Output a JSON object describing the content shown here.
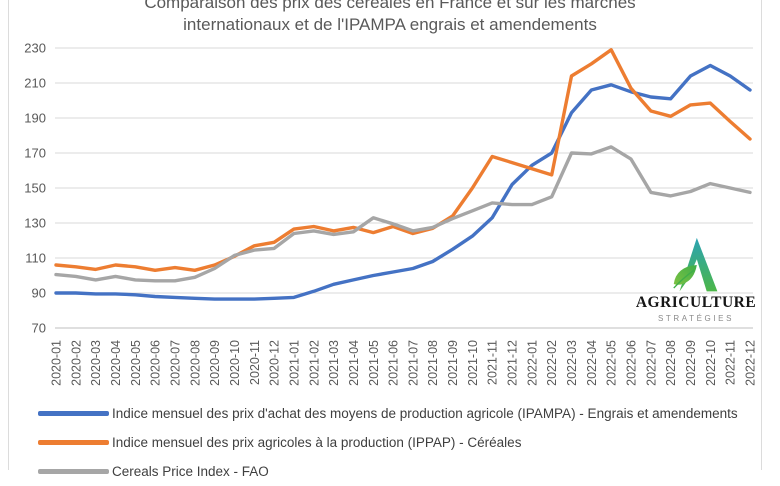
{
  "title": {
    "line1": "Comparaison des prix des céréales en France et sur les marchés",
    "line2": "internationaux et de l'IPAMPA engrais et amendements"
  },
  "logo": {
    "brand": "AGRICULTURE",
    "sub": "STRATÉGIES"
  },
  "colors": {
    "ipampa_blue": "#4472C4",
    "ippap_orange": "#ED7D31",
    "fao_gray": "#A6A6A6",
    "grid": "#D9D9D9",
    "axis_line": "#BFBFBF",
    "tick_text": "#595959",
    "title_text": "#595959",
    "legend_text": "#3F3F3F"
  },
  "chart_data": {
    "type": "line",
    "title": "Comparaison des prix des céréales en France et sur les marchés internationaux et de l'IPAMPA engrais et amendements",
    "xlabel": "",
    "ylabel": "",
    "ylim": [
      70,
      230
    ],
    "yticks": [
      70,
      90,
      110,
      130,
      150,
      170,
      190,
      210,
      230
    ],
    "grid": true,
    "legend_position": "bottom-left",
    "x": [
      "2020-01",
      "2020-02",
      "2020-03",
      "2020-04",
      "2020-05",
      "2020-06",
      "2020-07",
      "2020-08",
      "2020-09",
      "2020-10",
      "2020-11",
      "2020-12",
      "2021-01",
      "2021-02",
      "2021-03",
      "2021-04",
      "2021-05",
      "2021-06",
      "2021-07",
      "2021-08",
      "2021-09",
      "2021-10",
      "2021-11",
      "2021-12",
      "2022-01",
      "2022-02",
      "2022-03",
      "2022-04",
      "2022-05",
      "2022-06",
      "2022-07",
      "2022-08",
      "2022-09",
      "2022-10",
      "2022-11",
      "2022-12"
    ],
    "series": [
      {
        "name": "Indice mensuel des prix d'achat des moyens de production agricole (IPAMPA) - Engrais et amendements",
        "color": "#4472C4",
        "values": [
          90,
          90,
          89.5,
          89.5,
          89,
          88,
          87.5,
          87,
          86.5,
          86.5,
          86.5,
          87,
          87.5,
          91,
          95,
          97.5,
          100,
          102,
          104,
          108,
          115,
          122.5,
          133,
          152,
          163,
          170,
          193,
          206,
          209,
          205,
          202,
          201,
          214,
          220,
          214,
          206
        ]
      },
      {
        "name": "Indice mensuel des prix agricoles à la production (IPPAP) - Céréales",
        "color": "#ED7D31",
        "values": [
          106,
          105,
          103.5,
          106,
          105,
          103,
          104.5,
          103,
          106,
          111,
          117,
          119,
          126.5,
          128,
          125.5,
          127.5,
          124.5,
          128,
          124,
          127,
          134,
          150,
          168,
          164.5,
          161,
          157.5,
          214,
          221,
          229,
          207,
          194,
          191,
          197.5,
          198.5,
          188,
          178
        ]
      },
      {
        "name": "Cereals Price Index - FAO",
        "color": "#A6A6A6",
        "values": [
          100.5,
          99.5,
          97.5,
          99.5,
          97.5,
          97,
          97,
          99,
          104,
          111.5,
          114.5,
          115.5,
          124,
          125.5,
          123.5,
          125,
          133,
          129.5,
          125.5,
          127.5,
          132.5,
          137,
          141.5,
          140.5,
          140.5,
          145,
          170,
          169.5,
          173.5,
          166.5,
          147.5,
          145.5,
          148,
          152.5,
          150,
          147.5
        ]
      }
    ]
  }
}
